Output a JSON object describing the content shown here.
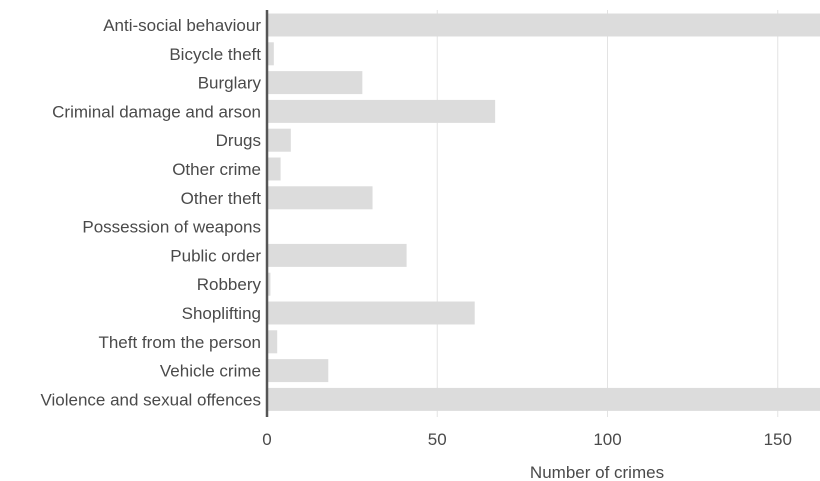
{
  "chart_data": {
    "type": "bar",
    "orientation": "horizontal",
    "categories": [
      "Anti-social behaviour",
      "Bicycle theft",
      "Burglary",
      "Criminal damage and arson",
      "Drugs",
      "Other crime",
      "Other theft",
      "Possession of weapons",
      "Public order",
      "Robbery",
      "Shoplifting",
      "Theft from the person",
      "Vehicle crime",
      "Violence and sexual offences"
    ],
    "values": [
      163,
      2,
      28,
      67,
      7,
      4,
      31,
      0,
      41,
      1,
      61,
      3,
      18,
      163
    ],
    "xlabel": "Number of crimes",
    "ylabel": "",
    "xlim": [
      0,
      162
    ],
    "xticks": [
      0,
      50,
      100,
      150
    ],
    "grid": "vertical",
    "bar_color": "#dcdcdc",
    "grid_color": "#e3e3e3",
    "axis_color": "#555555",
    "text_color": "#4a4a4a"
  }
}
